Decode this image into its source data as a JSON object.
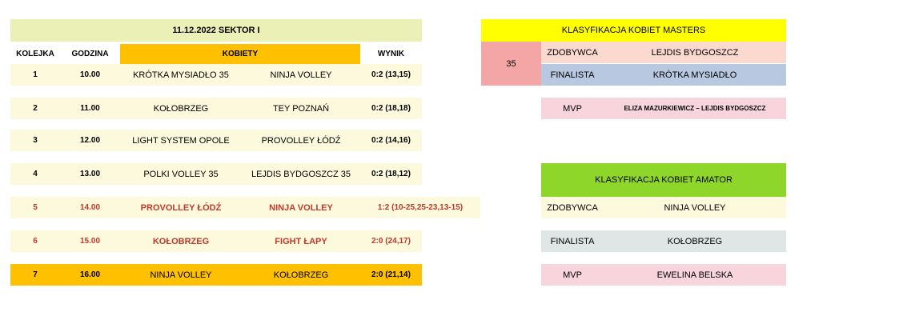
{
  "schedule": {
    "title": "11.12.2022  SEKTOR I",
    "columns": [
      "KOLEJKA",
      "GODZINA",
      "KOBIETY",
      "WYNIK"
    ],
    "rows": [
      [
        "1",
        "10.00",
        "KRÓTKA MYSIADŁO 35",
        "NINJA VOLLEY",
        "0:2 (13,15)"
      ],
      [
        "2",
        "11.00",
        "KOŁOBRZEG",
        "TEY POZNAŃ",
        "0:2 (18,18)"
      ],
      [
        "3",
        "12.00",
        "LIGHT SYSTEM OPOLE",
        "PROVOLLEY ŁÓDŹ",
        "0:2 (14,16)"
      ],
      [
        "4",
        "13.00",
        "POLKI VOLLEY 35",
        "LEJDIS BYDGOSZCZ 35",
        "0:2 (18,12)"
      ],
      [
        "5",
        "14.00",
        "PROVOLLEY ŁÓDŹ",
        "NINJA VOLLEY",
        "1:2 (10-25,25-23,13-15)"
      ],
      [
        "6",
        "15.00",
        "KOŁOBRZEG",
        "FIGHT ŁAPY",
        "2:0 (24,17)"
      ],
      [
        "7",
        "16.00",
        "NINJA VOLLEY",
        "KOŁOBRZEG",
        "2:0 (21,14)"
      ]
    ]
  },
  "masters": {
    "title": "KLASYFIKACJA KOBIET MASTERS",
    "group": "35",
    "rows": [
      [
        "ZDOBYWCA",
        "LEJDIS BYDGOSZCZ"
      ],
      [
        "FINALISTA",
        "KRÓTKA MYSIADŁO"
      ]
    ],
    "mvp": [
      "MVP",
      "ELIZA MAZURKIEWICZ – LEJDIS BYDGOSZCZ"
    ]
  },
  "amator": {
    "title": "KLASYFIKACJA KOBIET AMATOR",
    "rows": [
      [
        "ZDOBYWCA",
        "NINJA VOLLEY"
      ],
      [
        "FINALISTA",
        "KOŁOBRZEG"
      ],
      [
        "MVP",
        "EWELINA BELSKA"
      ]
    ]
  }
}
